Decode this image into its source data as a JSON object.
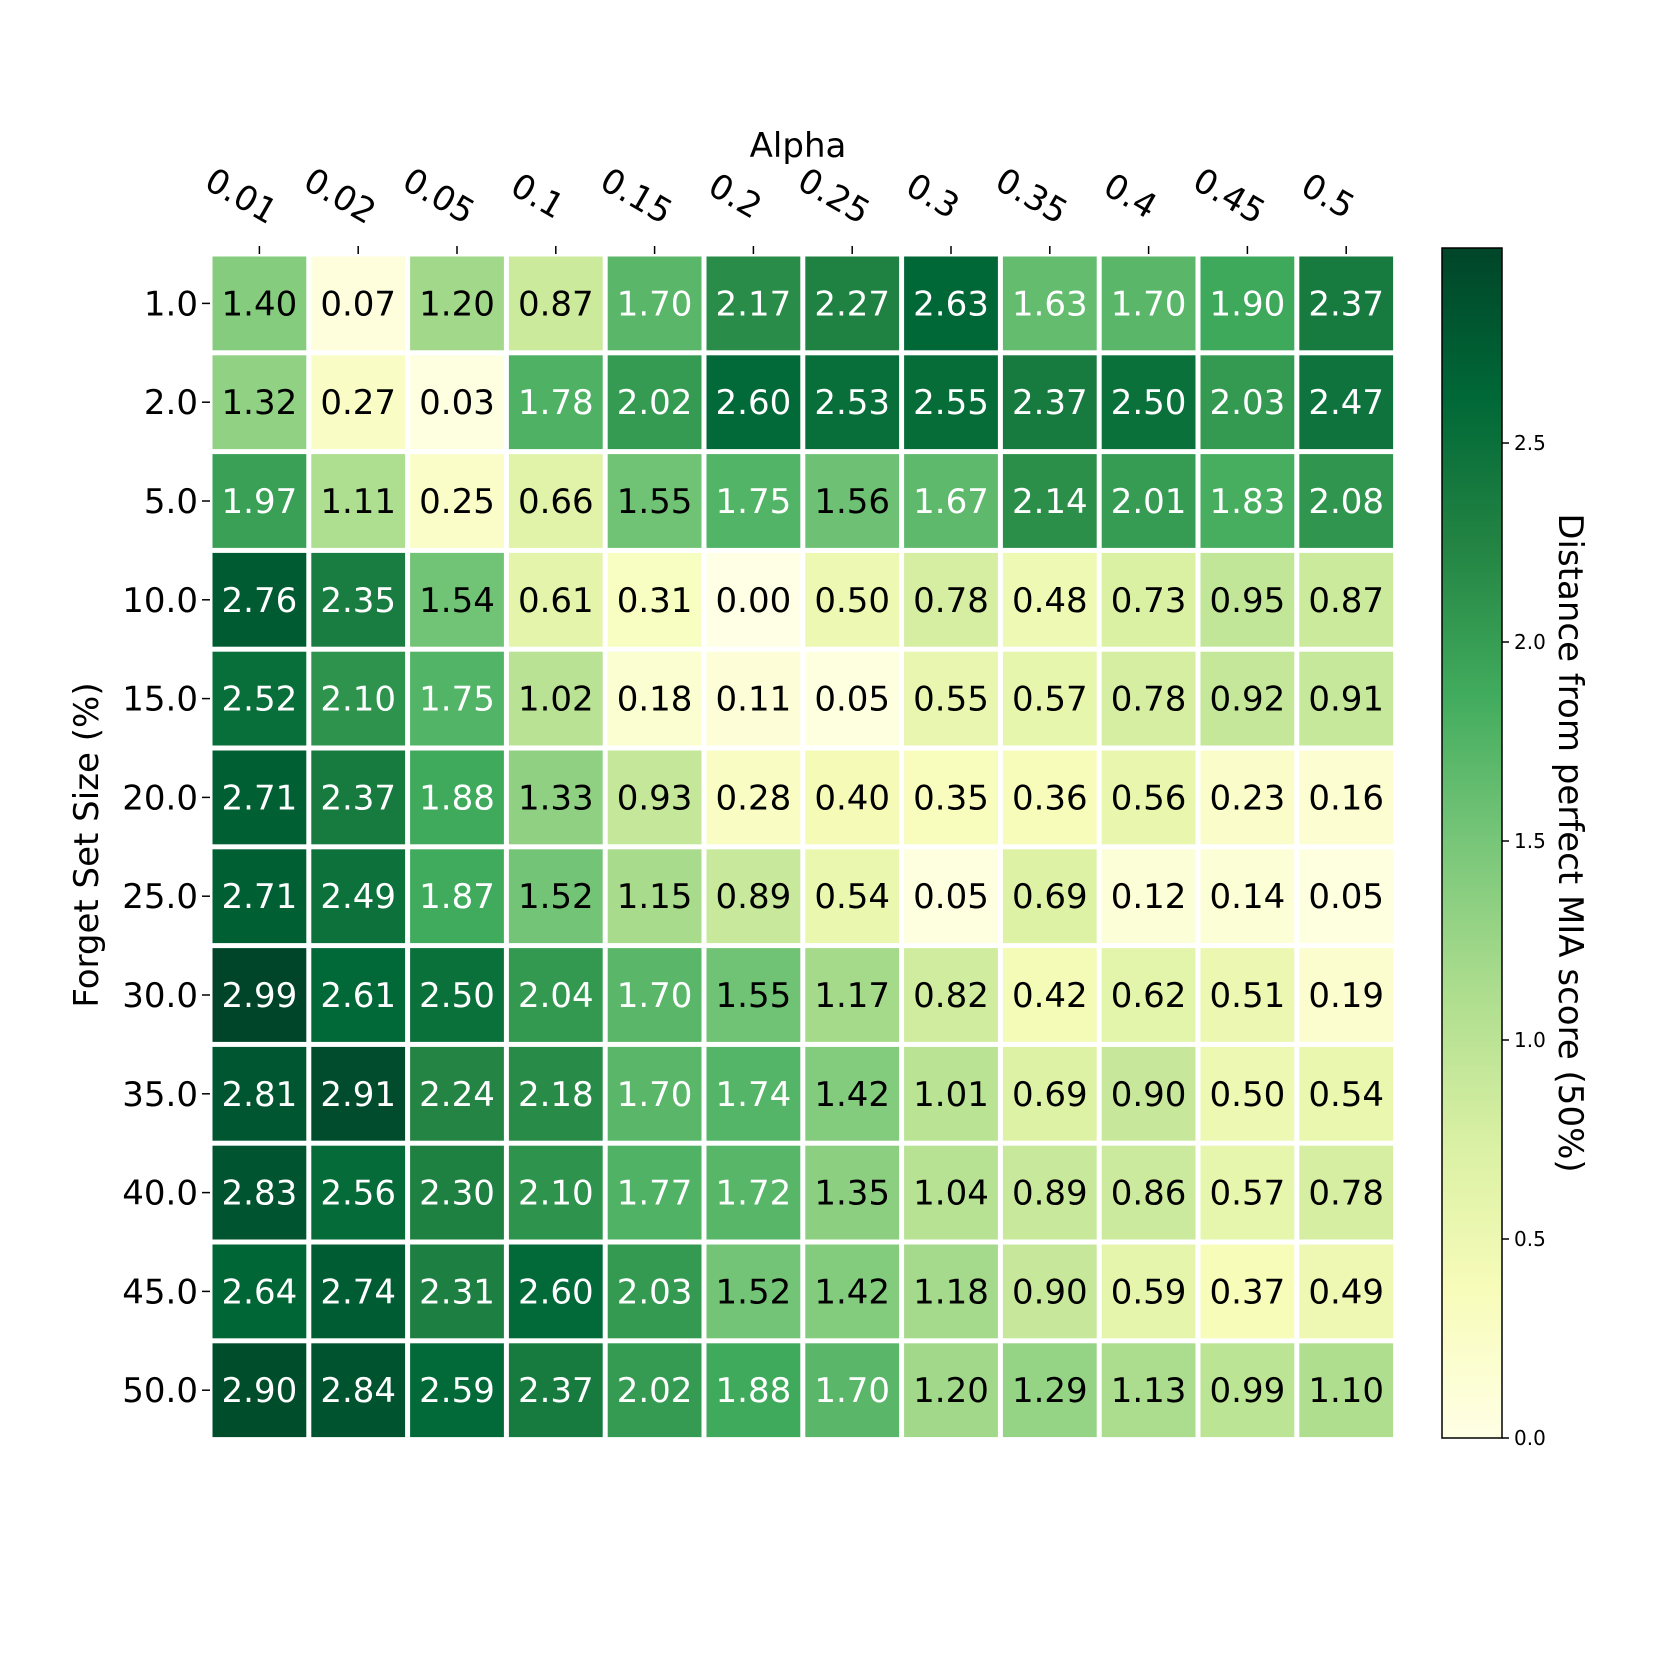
{
  "chart_data": {
    "type": "heatmap",
    "xlabel": "Alpha",
    "ylabel": "Forget Set Size (%)",
    "x_categories": [
      "0.01",
      "0.02",
      "0.05",
      "0.1",
      "0.15",
      "0.2",
      "0.25",
      "0.3",
      "0.35",
      "0.4",
      "0.45",
      "0.5"
    ],
    "y_categories": [
      "1.0",
      "2.0",
      "5.0",
      "10.0",
      "15.0",
      "20.0",
      "25.0",
      "30.0",
      "35.0",
      "40.0",
      "45.0",
      "50.0"
    ],
    "values": [
      [
        1.4,
        0.07,
        1.2,
        0.87,
        1.7,
        2.17,
        2.27,
        2.63,
        1.63,
        1.7,
        1.9,
        2.37
      ],
      [
        1.32,
        0.27,
        0.03,
        1.78,
        2.02,
        2.6,
        2.53,
        2.55,
        2.37,
        2.5,
        2.03,
        2.47
      ],
      [
        1.97,
        1.11,
        0.25,
        0.66,
        1.55,
        1.75,
        1.56,
        1.67,
        2.14,
        2.01,
        1.83,
        2.08
      ],
      [
        2.76,
        2.35,
        1.54,
        0.61,
        0.31,
        0.0,
        0.5,
        0.78,
        0.48,
        0.73,
        0.95,
        0.87
      ],
      [
        2.52,
        2.1,
        1.75,
        1.02,
        0.18,
        0.11,
        0.05,
        0.55,
        0.57,
        0.78,
        0.92,
        0.91
      ],
      [
        2.71,
        2.37,
        1.88,
        1.33,
        0.93,
        0.28,
        0.4,
        0.35,
        0.36,
        0.56,
        0.23,
        0.16
      ],
      [
        2.71,
        2.49,
        1.87,
        1.52,
        1.15,
        0.89,
        0.54,
        0.05,
        0.69,
        0.12,
        0.14,
        0.05
      ],
      [
        2.99,
        2.61,
        2.5,
        2.04,
        1.7,
        1.55,
        1.17,
        0.82,
        0.42,
        0.62,
        0.51,
        0.19
      ],
      [
        2.81,
        2.91,
        2.24,
        2.18,
        1.7,
        1.74,
        1.42,
        1.01,
        0.69,
        0.9,
        0.5,
        0.54
      ],
      [
        2.83,
        2.56,
        2.3,
        2.1,
        1.77,
        1.72,
        1.35,
        1.04,
        0.89,
        0.86,
        0.57,
        0.78
      ],
      [
        2.64,
        2.74,
        2.31,
        2.6,
        2.03,
        1.52,
        1.42,
        1.18,
        0.9,
        0.59,
        0.37,
        0.49
      ],
      [
        2.9,
        2.84,
        2.59,
        2.37,
        2.02,
        1.88,
        1.7,
        1.2,
        1.29,
        1.13,
        0.99,
        1.1
      ]
    ],
    "value_format": "2 decimals",
    "annotations": true,
    "colormap": "YlGn",
    "vmin": 0.0,
    "vmax": 2.99,
    "colorbar": {
      "label": "Distance from perfect MIA score (50%)",
      "ticks": [
        "0.0",
        "0.5",
        "1.0",
        "1.5",
        "2.0",
        "2.5"
      ],
      "tick_values": [
        0.0,
        0.5,
        1.0,
        1.5,
        2.0,
        2.5
      ],
      "placement": "right"
    },
    "x_axis_position": "top",
    "legend": "none"
  }
}
